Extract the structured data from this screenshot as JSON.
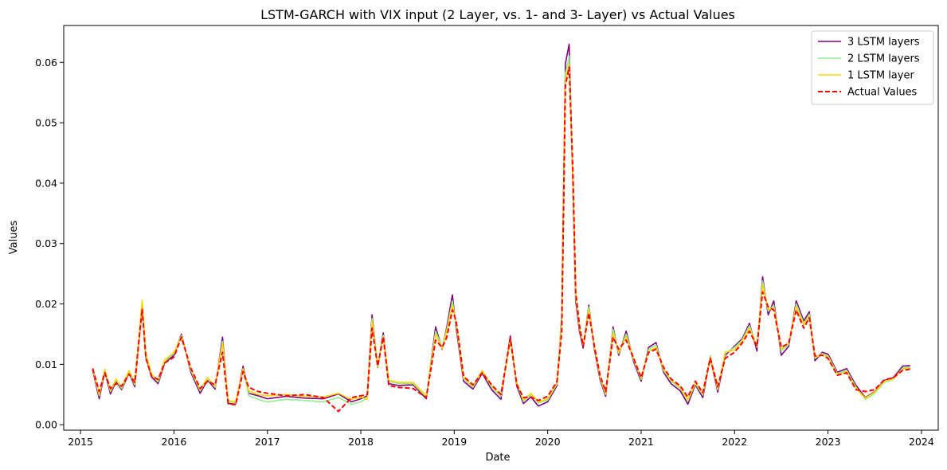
{
  "chart_data": {
    "type": "line",
    "title": "LSTM-GARCH with VIX input (2 Layer, vs. 1- and 3- Layer) vs Actual Values",
    "xlabel": "Date",
    "ylabel": "Values",
    "xlim": [
      2014.82,
      2024.18
    ],
    "ylim": [
      -0.0009,
      0.0661
    ],
    "x_ticks": [
      2015,
      2016,
      2017,
      2018,
      2019,
      2020,
      2021,
      2022,
      2023,
      2024
    ],
    "x_tick_labels": [
      "2015",
      "2016",
      "2017",
      "2018",
      "2019",
      "2020",
      "2021",
      "2022",
      "2023",
      "2024"
    ],
    "y_ticks": [
      0.0,
      0.01,
      0.02,
      0.03,
      0.04,
      0.05,
      0.06
    ],
    "y_tick_labels": [
      "0.00",
      "0.01",
      "0.02",
      "0.03",
      "0.04",
      "0.05",
      "0.06"
    ],
    "grid": false,
    "legend_position": "top-right",
    "series": [
      {
        "name": "3 LSTM layers",
        "color": "#800080",
        "style": "solid",
        "x": [
          2015.13,
          2015.2,
          2015.26,
          2015.32,
          2015.38,
          2015.44,
          2015.52,
          2015.58,
          2015.66,
          2015.7,
          2015.76,
          2015.83,
          2015.9,
          2016.0,
          2016.08,
          2016.18,
          2016.28,
          2016.36,
          2016.44,
          2016.52,
          2016.58,
          2016.66,
          2016.74,
          2016.8,
          2016.9,
          2017.0,
          2017.2,
          2017.4,
          2017.6,
          2017.76,
          2017.9,
          2018.0,
          2018.07,
          2018.12,
          2018.18,
          2018.24,
          2018.3,
          2018.4,
          2018.56,
          2018.7,
          2018.8,
          2018.87,
          2018.92,
          2018.98,
          2019.02,
          2019.1,
          2019.2,
          2019.3,
          2019.4,
          2019.5,
          2019.6,
          2019.67,
          2019.74,
          2019.82,
          2019.9,
          2020.0,
          2020.1,
          2020.15,
          2020.19,
          2020.23,
          2020.27,
          2020.3,
          2020.34,
          2020.38,
          2020.44,
          2020.5,
          2020.56,
          2020.62,
          2020.7,
          2020.76,
          2020.84,
          2020.92,
          2021.0,
          2021.08,
          2021.16,
          2021.24,
          2021.32,
          2021.42,
          2021.5,
          2021.58,
          2021.66,
          2021.74,
          2021.82,
          2021.9,
          2022.0,
          2022.08,
          2022.16,
          2022.24,
          2022.3,
          2022.36,
          2022.42,
          2022.5,
          2022.58,
          2022.66,
          2022.74,
          2022.8,
          2022.86,
          2022.94,
          2023.0,
          2023.1,
          2023.2,
          2023.3,
          2023.4,
          2023.5,
          2023.6,
          2023.7,
          2023.8,
          2023.88
        ],
        "y": [
          0.009,
          0.0043,
          0.0088,
          0.0051,
          0.0072,
          0.0058,
          0.0086,
          0.0063,
          0.0198,
          0.0112,
          0.0079,
          0.0068,
          0.0102,
          0.0115,
          0.015,
          0.0087,
          0.0052,
          0.0074,
          0.0059,
          0.0145,
          0.0035,
          0.0034,
          0.0097,
          0.0052,
          0.0048,
          0.0043,
          0.0047,
          0.0044,
          0.0043,
          0.0051,
          0.0038,
          0.0043,
          0.0048,
          0.0182,
          0.0095,
          0.0152,
          0.0068,
          0.0065,
          0.0066,
          0.0043,
          0.0162,
          0.0125,
          0.0162,
          0.0215,
          0.016,
          0.0072,
          0.0059,
          0.0085,
          0.0058,
          0.0042,
          0.0147,
          0.0064,
          0.0035,
          0.0046,
          0.0031,
          0.0038,
          0.0065,
          0.018,
          0.0598,
          0.063,
          0.0395,
          0.0205,
          0.0155,
          0.0127,
          0.0198,
          0.0125,
          0.0075,
          0.0047,
          0.0162,
          0.0115,
          0.0155,
          0.0104,
          0.0072,
          0.0128,
          0.0136,
          0.0087,
          0.0068,
          0.0056,
          0.0034,
          0.0066,
          0.0045,
          0.0112,
          0.0054,
          0.0115,
          0.013,
          0.0142,
          0.0168,
          0.0122,
          0.0245,
          0.0182,
          0.0205,
          0.0115,
          0.013,
          0.0205,
          0.0172,
          0.0187,
          0.0106,
          0.012,
          0.0117,
          0.0087,
          0.0093,
          0.0065,
          0.0045,
          0.0055,
          0.0073,
          0.0078,
          0.0097,
          0.0098
        ]
      },
      {
        "name": "2 LSTM layers",
        "color": "#90EE90",
        "style": "solid",
        "x": [
          2015.13,
          2015.2,
          2015.26,
          2015.32,
          2015.38,
          2015.44,
          2015.52,
          2015.58,
          2015.66,
          2015.7,
          2015.76,
          2015.83,
          2015.9,
          2016.0,
          2016.08,
          2016.18,
          2016.28,
          2016.36,
          2016.44,
          2016.52,
          2016.58,
          2016.66,
          2016.74,
          2016.8,
          2016.9,
          2017.0,
          2017.2,
          2017.4,
          2017.6,
          2017.76,
          2017.9,
          2018.0,
          2018.07,
          2018.12,
          2018.18,
          2018.24,
          2018.3,
          2018.4,
          2018.56,
          2018.7,
          2018.8,
          2018.87,
          2018.92,
          2018.98,
          2019.02,
          2019.1,
          2019.2,
          2019.3,
          2019.4,
          2019.5,
          2019.6,
          2019.67,
          2019.74,
          2019.82,
          2019.9,
          2020.0,
          2020.1,
          2020.15,
          2020.19,
          2020.23,
          2020.27,
          2020.3,
          2020.34,
          2020.38,
          2020.44,
          2020.5,
          2020.56,
          2020.62,
          2020.7,
          2020.76,
          2020.84,
          2020.92,
          2021.0,
          2021.08,
          2021.16,
          2021.24,
          2021.32,
          2021.42,
          2021.5,
          2021.58,
          2021.66,
          2021.74,
          2021.82,
          2021.9,
          2022.0,
          2022.08,
          2022.16,
          2022.24,
          2022.3,
          2022.36,
          2022.42,
          2022.5,
          2022.58,
          2022.66,
          2022.74,
          2022.8,
          2022.86,
          2022.94,
          2023.0,
          2023.1,
          2023.2,
          2023.3,
          2023.4,
          2023.5,
          2023.6,
          2023.7,
          2023.8,
          2023.88
        ],
        "y": [
          0.0092,
          0.0048,
          0.009,
          0.0055,
          0.0074,
          0.006,
          0.0088,
          0.0066,
          0.0202,
          0.0115,
          0.0082,
          0.0071,
          0.0105,
          0.0118,
          0.0148,
          0.009,
          0.0056,
          0.0076,
          0.0062,
          0.0138,
          0.0038,
          0.0036,
          0.0093,
          0.0048,
          0.0042,
          0.0038,
          0.0042,
          0.004,
          0.0038,
          0.0045,
          0.0034,
          0.0038,
          0.0045,
          0.0176,
          0.0098,
          0.0148,
          0.0072,
          0.0068,
          0.0068,
          0.0046,
          0.0155,
          0.0128,
          0.0158,
          0.0205,
          0.0165,
          0.0076,
          0.0062,
          0.0088,
          0.0062,
          0.0047,
          0.0142,
          0.0068,
          0.0039,
          0.005,
          0.0036,
          0.0041,
          0.0068,
          0.0175,
          0.0582,
          0.061,
          0.0405,
          0.0212,
          0.016,
          0.013,
          0.0195,
          0.0128,
          0.0078,
          0.005,
          0.0158,
          0.0118,
          0.015,
          0.0107,
          0.0075,
          0.0125,
          0.0132,
          0.009,
          0.0072,
          0.006,
          0.0039,
          0.0068,
          0.0049,
          0.0115,
          0.0058,
          0.0118,
          0.0128,
          0.014,
          0.0164,
          0.0128,
          0.0238,
          0.0188,
          0.0198,
          0.0122,
          0.0133,
          0.02,
          0.0168,
          0.0183,
          0.011,
          0.0118,
          0.0114,
          0.0085,
          0.009,
          0.0062,
          0.0042,
          0.0052,
          0.007,
          0.0075,
          0.0094,
          0.0096
        ]
      },
      {
        "name": "1 LSTM layer",
        "color": "#FFD700",
        "style": "solid",
        "x": [
          2015.13,
          2015.2,
          2015.26,
          2015.32,
          2015.38,
          2015.44,
          2015.52,
          2015.58,
          2015.66,
          2015.7,
          2015.76,
          2015.83,
          2015.9,
          2016.0,
          2016.08,
          2016.18,
          2016.28,
          2016.36,
          2016.44,
          2016.52,
          2016.58,
          2016.66,
          2016.74,
          2016.8,
          2016.9,
          2017.0,
          2017.2,
          2017.4,
          2017.6,
          2017.76,
          2017.9,
          2018.0,
          2018.07,
          2018.12,
          2018.18,
          2018.24,
          2018.3,
          2018.4,
          2018.56,
          2018.7,
          2018.8,
          2018.87,
          2018.92,
          2018.98,
          2019.02,
          2019.1,
          2019.2,
          2019.3,
          2019.4,
          2019.5,
          2019.6,
          2019.67,
          2019.74,
          2019.82,
          2019.9,
          2020.0,
          2020.1,
          2020.15,
          2020.19,
          2020.23,
          2020.27,
          2020.3,
          2020.34,
          2020.38,
          2020.44,
          2020.5,
          2020.56,
          2020.62,
          2020.7,
          2020.76,
          2020.84,
          2020.92,
          2021.0,
          2021.08,
          2021.16,
          2021.24,
          2021.32,
          2021.42,
          2021.5,
          2021.58,
          2021.66,
          2021.74,
          2021.82,
          2021.9,
          2022.0,
          2022.08,
          2022.16,
          2022.24,
          2022.3,
          2022.36,
          2022.42,
          2022.5,
          2022.58,
          2022.66,
          2022.74,
          2022.8,
          2022.86,
          2022.94,
          2023.0,
          2023.1,
          2023.2,
          2023.3,
          2023.4,
          2023.5,
          2023.6,
          2023.7,
          2023.8,
          2023.88
        ],
        "y": [
          0.0094,
          0.005,
          0.0092,
          0.0057,
          0.0076,
          0.0062,
          0.009,
          0.0068,
          0.0206,
          0.0118,
          0.0084,
          0.0073,
          0.0107,
          0.012,
          0.0146,
          0.0092,
          0.0058,
          0.0078,
          0.0064,
          0.0134,
          0.004,
          0.0038,
          0.0092,
          0.0056,
          0.005,
          0.0048,
          0.005,
          0.0047,
          0.0046,
          0.0052,
          0.0042,
          0.0046,
          0.0042,
          0.0172,
          0.0096,
          0.0145,
          0.0074,
          0.007,
          0.007,
          0.0048,
          0.015,
          0.0126,
          0.0155,
          0.0198,
          0.0168,
          0.0078,
          0.0064,
          0.009,
          0.0064,
          0.0049,
          0.0138,
          0.007,
          0.0041,
          0.0052,
          0.0038,
          0.0043,
          0.007,
          0.0168,
          0.057,
          0.0598,
          0.041,
          0.0215,
          0.0163,
          0.0132,
          0.019,
          0.013,
          0.008,
          0.0052,
          0.0152,
          0.012,
          0.0146,
          0.0109,
          0.0077,
          0.0122,
          0.0128,
          0.0092,
          0.0074,
          0.0062,
          0.0041,
          0.007,
          0.0051,
          0.0112,
          0.006,
          0.012,
          0.0124,
          0.0138,
          0.016,
          0.013,
          0.0232,
          0.019,
          0.0194,
          0.0125,
          0.0135,
          0.0196,
          0.0165,
          0.018,
          0.0112,
          0.0116,
          0.0112,
          0.0083,
          0.0088,
          0.006,
          0.0044,
          0.0054,
          0.0072,
          0.0076,
          0.0092,
          0.0094
        ]
      },
      {
        "name": "Actual Values",
        "color": "#FF0000",
        "style": "dashed",
        "x": [
          2015.13,
          2015.2,
          2015.26,
          2015.32,
          2015.38,
          2015.44,
          2015.52,
          2015.58,
          2015.66,
          2015.7,
          2015.76,
          2015.83,
          2015.9,
          2016.0,
          2016.08,
          2016.18,
          2016.28,
          2016.36,
          2016.44,
          2016.52,
          2016.58,
          2016.66,
          2016.74,
          2016.8,
          2016.9,
          2017.0,
          2017.2,
          2017.4,
          2017.6,
          2017.76,
          2017.9,
          2018.0,
          2018.07,
          2018.12,
          2018.18,
          2018.24,
          2018.3,
          2018.4,
          2018.56,
          2018.7,
          2018.8,
          2018.87,
          2018.92,
          2018.98,
          2019.02,
          2019.1,
          2019.2,
          2019.3,
          2019.4,
          2019.5,
          2019.6,
          2019.67,
          2019.74,
          2019.82,
          2019.9,
          2020.0,
          2020.1,
          2020.15,
          2020.19,
          2020.23,
          2020.27,
          2020.3,
          2020.34,
          2020.38,
          2020.44,
          2020.5,
          2020.56,
          2020.62,
          2020.7,
          2020.76,
          2020.84,
          2020.92,
          2021.0,
          2021.08,
          2021.16,
          2021.24,
          2021.32,
          2021.42,
          2021.5,
          2021.58,
          2021.66,
          2021.74,
          2021.82,
          2021.9,
          2022.0,
          2022.08,
          2022.16,
          2022.24,
          2022.3,
          2022.36,
          2022.42,
          2022.5,
          2022.58,
          2022.66,
          2022.74,
          2022.8,
          2022.86,
          2022.94,
          2023.0,
          2023.1,
          2023.2,
          2023.3,
          2023.4,
          2023.5,
          2023.6,
          2023.7,
          2023.8,
          2023.88
        ],
        "y": [
          0.0093,
          0.0055,
          0.0086,
          0.006,
          0.0068,
          0.0064,
          0.0084,
          0.007,
          0.0192,
          0.011,
          0.008,
          0.0075,
          0.0102,
          0.0112,
          0.0145,
          0.0094,
          0.006,
          0.0072,
          0.0066,
          0.012,
          0.0035,
          0.0033,
          0.0088,
          0.0062,
          0.0055,
          0.0052,
          0.0048,
          0.005,
          0.0045,
          0.0022,
          0.0045,
          0.0048,
          0.005,
          0.016,
          0.0097,
          0.0145,
          0.0065,
          0.0062,
          0.006,
          0.0045,
          0.014,
          0.0128,
          0.0145,
          0.019,
          0.0172,
          0.008,
          0.0066,
          0.0086,
          0.0066,
          0.005,
          0.0143,
          0.0066,
          0.0045,
          0.0046,
          0.004,
          0.0047,
          0.0072,
          0.0155,
          0.0562,
          0.0592,
          0.042,
          0.022,
          0.0165,
          0.013,
          0.0185,
          0.013,
          0.0082,
          0.0055,
          0.0145,
          0.0125,
          0.014,
          0.011,
          0.0078,
          0.012,
          0.0125,
          0.0095,
          0.0076,
          0.0064,
          0.0046,
          0.0072,
          0.0053,
          0.011,
          0.0063,
          0.011,
          0.012,
          0.0135,
          0.0155,
          0.013,
          0.022,
          0.0195,
          0.019,
          0.0128,
          0.0135,
          0.019,
          0.016,
          0.0177,
          0.0114,
          0.0115,
          0.011,
          0.0082,
          0.0086,
          0.0058,
          0.0055,
          0.0058,
          0.0074,
          0.0078,
          0.009,
          0.0092
        ]
      }
    ]
  }
}
